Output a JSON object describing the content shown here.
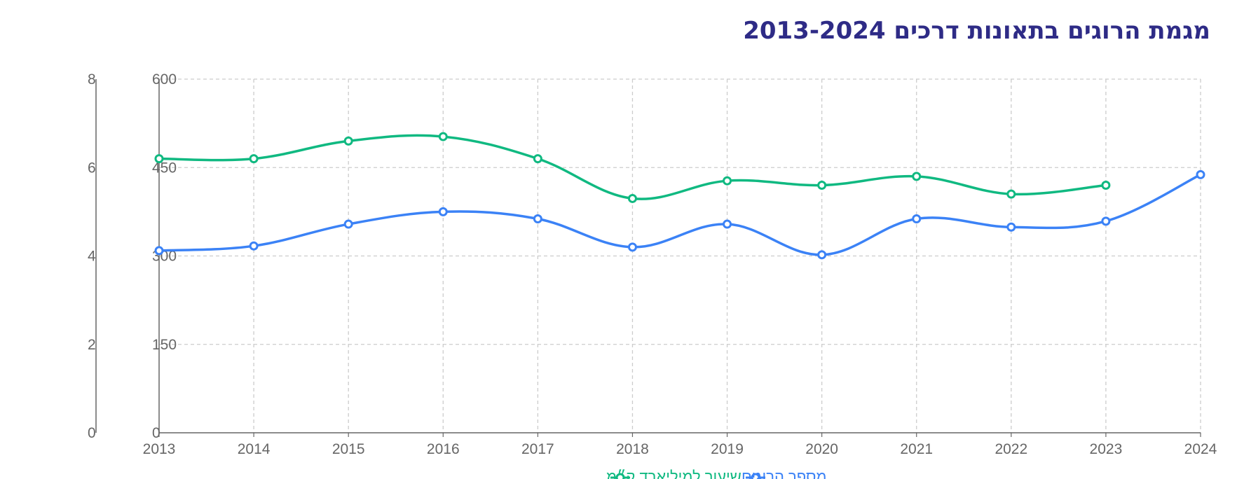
{
  "chart_data": {
    "type": "line",
    "title": "מגמת הרוגים בתאונות דרכים 2013-2024",
    "categories": [
      "2013",
      "2014",
      "2015",
      "2016",
      "2017",
      "2018",
      "2019",
      "2020",
      "2021",
      "2022",
      "2023",
      "2024"
    ],
    "series": [
      {
        "name": "מספר הרוגים",
        "axis": "left-inner",
        "color": "#3b82f6",
        "values": [
          309,
          317,
          354,
          375,
          363,
          315,
          354,
          302,
          363,
          349,
          359,
          438
        ]
      },
      {
        "name": "שיעור למיליארד ק״מ",
        "axis": "left-outer",
        "color": "#10b981",
        "values": [
          6.2,
          6.2,
          6.6,
          6.7,
          6.2,
          5.3,
          5.7,
          5.6,
          5.8,
          5.4,
          5.6,
          null
        ]
      }
    ],
    "axes": {
      "y_inner": {
        "ylim": [
          0,
          600
        ],
        "ticks": [
          "0",
          "150",
          "300",
          "450",
          "600"
        ]
      },
      "y_outer": {
        "ylim": [
          0,
          8
        ],
        "ticks": [
          "0",
          "2",
          "4",
          "6",
          "8"
        ]
      }
    },
    "grid": true,
    "legend_position": "bottom"
  },
  "colors": {
    "title": "#2e2b86",
    "grid": "#cccccc",
    "axis": "#666666"
  }
}
